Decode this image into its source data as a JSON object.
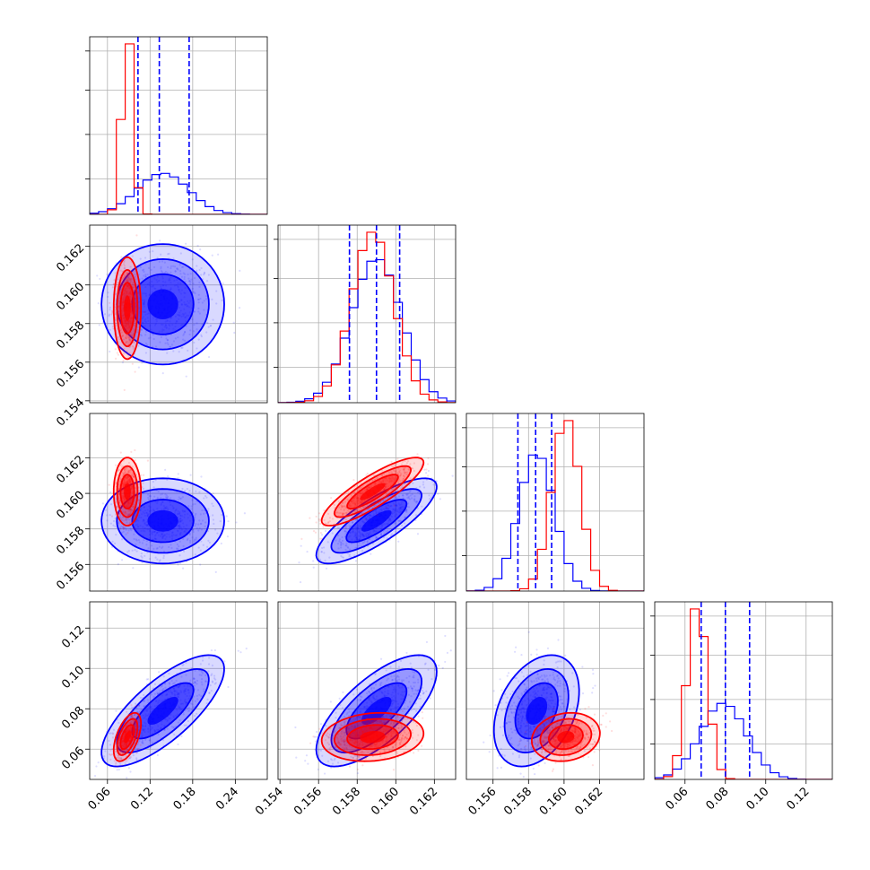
{
  "chart_data": {
    "type": "corner",
    "grid": true,
    "legend": "none",
    "colors": {
      "blue": "#0000ff",
      "red": "#ff0000",
      "grid": "#b0b0b0"
    },
    "series": [
      {
        "color": "#0000ff",
        "mean": [
          0.138,
          0.159,
          0.15845,
          0.079
        ],
        "sd": [
          0.036,
          0.0013,
          0.001,
          0.0115
        ],
        "corr": [
          [
            1,
            0,
            0,
            0.75
          ],
          [
            0,
            1,
            0.8,
            0.7
          ],
          [
            0,
            0.8,
            1,
            0.35
          ],
          [
            0.75,
            0.7,
            0.35,
            1
          ]
        ],
        "quantiles": [
          [
            0.103,
            0.133,
            0.175
          ],
          [
            0.1576,
            0.159,
            0.1602
          ],
          [
            0.1574,
            0.1584,
            0.1593
          ],
          [
            0.068,
            0.08,
            0.092
          ]
        ]
      },
      {
        "color": "#ff0000",
        "mean": [
          0.088,
          0.1588,
          0.1601,
          0.066
        ],
        "sd": [
          0.008,
          0.0011,
          0.0008,
          0.005
        ],
        "corr": [
          [
            1,
            0,
            0,
            0.55
          ],
          [
            0,
            1,
            0.85,
            0.15
          ],
          [
            0,
            0.85,
            1,
            0.15
          ],
          [
            0.55,
            0.15,
            0.15,
            1
          ]
        ],
        "quantiles": []
      }
    ],
    "dims": [
      {
        "range": [
          0.035,
          0.285
        ],
        "ticks": [
          "0.06",
          "0.12",
          "0.18",
          "0.24"
        ],
        "tickvals": [
          0.06,
          0.12,
          0.18,
          0.24
        ]
      },
      {
        "range": [
          0.1539,
          0.1631
        ],
        "ticks": [
          "0.154",
          "0.156",
          "0.158",
          "0.160",
          "0.162"
        ],
        "tickvals": [
          0.154,
          0.156,
          0.158,
          0.16,
          0.162
        ]
      },
      {
        "range": [
          0.1545,
          0.1645
        ],
        "ticks": [
          "0.156",
          "0.158",
          "0.160",
          "0.162"
        ],
        "tickvals": [
          0.156,
          0.158,
          0.16,
          0.162
        ]
      },
      {
        "range": [
          0.045,
          0.133
        ],
        "ticks": [
          "0.06",
          "0.08",
          "0.10",
          "0.12"
        ],
        "tickvals": [
          0.06,
          0.08,
          0.1,
          0.12
        ]
      }
    ]
  }
}
